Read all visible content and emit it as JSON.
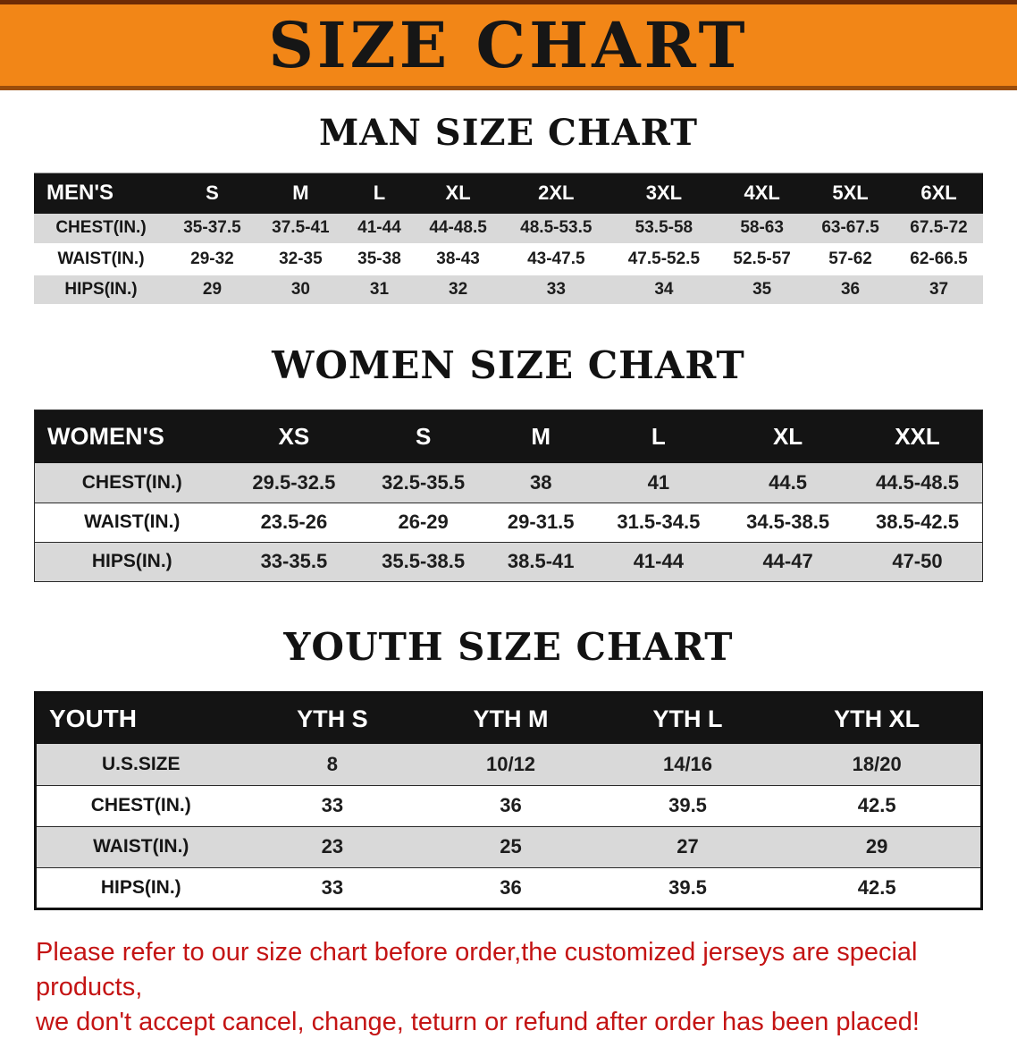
{
  "banner": {
    "title": "SIZE CHART"
  },
  "colors": {
    "banner_orange": "#f28617",
    "banner_border_top": "#6e2b05",
    "banner_border_bottom": "#9a4d0b",
    "table_header_black": "#141414",
    "row_gray": "#d9d9d9",
    "row_white": "#ffffff",
    "disclaimer_red": "#c41414"
  },
  "men": {
    "heading": "MAN SIZE CHART",
    "table": {
      "header": [
        "MEN'S",
        "S",
        "M",
        "L",
        "XL",
        "2XL",
        "3XL",
        "4XL",
        "5XL",
        "6XL"
      ],
      "rows": [
        [
          "CHEST(IN.)",
          "35-37.5",
          "37.5-41",
          "41-44",
          "44-48.5",
          "48.5-53.5",
          "53.5-58",
          "58-63",
          "63-67.5",
          "67.5-72"
        ],
        [
          "WAIST(IN.)",
          "29-32",
          "32-35",
          "35-38",
          "38-43",
          "43-47.5",
          "47.5-52.5",
          "52.5-57",
          "57-62",
          "62-66.5"
        ],
        [
          "HIPS(IN.)",
          "29",
          "30",
          "31",
          "32",
          "33",
          "34",
          "35",
          "36",
          "37"
        ]
      ]
    }
  },
  "women": {
    "heading": "WOMEN SIZE CHART",
    "table": {
      "header": [
        "WOMEN'S",
        "XS",
        "S",
        "M",
        "L",
        "XL",
        "XXL"
      ],
      "rows": [
        [
          "CHEST(IN.)",
          "29.5-32.5",
          "32.5-35.5",
          "38",
          "41",
          "44.5",
          "44.5-48.5"
        ],
        [
          "WAIST(IN.)",
          "23.5-26",
          "26-29",
          "29-31.5",
          "31.5-34.5",
          "34.5-38.5",
          "38.5-42.5"
        ],
        [
          "HIPS(IN.)",
          "33-35.5",
          "35.5-38.5",
          "38.5-41",
          "41-44",
          "44-47",
          "47-50"
        ]
      ]
    }
  },
  "youth": {
    "heading": "YOUTH SIZE CHART",
    "table": {
      "header": [
        "YOUTH",
        "YTH S",
        "YTH M",
        "YTH L",
        "YTH XL"
      ],
      "rows": [
        [
          "U.S.SIZE",
          "8",
          "10/12",
          "14/16",
          "18/20"
        ],
        [
          "CHEST(IN.)",
          "33",
          "36",
          "39.5",
          "42.5"
        ],
        [
          "WAIST(IN.)",
          "23",
          "25",
          "27",
          "29"
        ],
        [
          "HIPS(IN.)",
          "33",
          "36",
          "39.5",
          "42.5"
        ]
      ]
    }
  },
  "disclaimer": {
    "line1": "Please refer to our size chart before order,the customized jerseys are special products,",
    "line2": "we don't accept cancel, change, teturn or refund after order has been placed!"
  }
}
